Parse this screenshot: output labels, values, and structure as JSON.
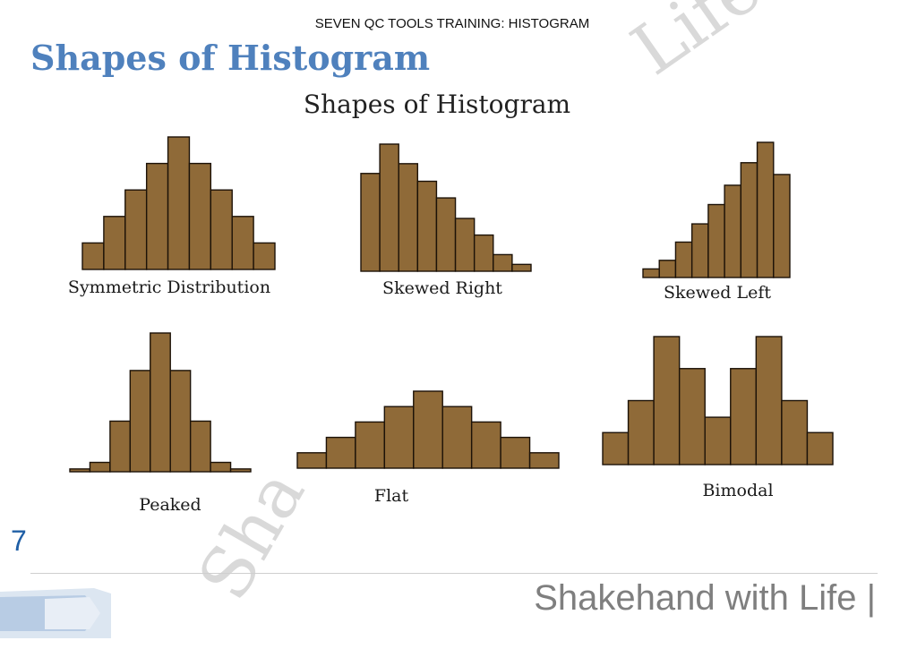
{
  "header": {
    "text": "SEVEN QC TOOLS TRAINING:  HISTOGRAM"
  },
  "slide": {
    "title": "Shapes of Histogram",
    "page_number": "7"
  },
  "figure": {
    "title": "Shapes of Histogram"
  },
  "watermark": {
    "top": "Life",
    "bottom": "Sha"
  },
  "footer": {
    "text": "Shakehand with Life |"
  },
  "colors": {
    "bar_fill": "#8f6a38",
    "bar_stroke": "#1c1208",
    "title_blue": "#4f81bd",
    "page_number_blue": "#1f5fa6",
    "footer_gray": "#7f7f7f"
  },
  "chart_data": [
    {
      "type": "bar",
      "title": "Symmetric Distribution",
      "values": [
        1,
        2,
        3,
        4,
        5,
        4,
        3,
        2,
        1
      ],
      "ylim": [
        0,
        5
      ]
    },
    {
      "type": "bar",
      "title": "Skewed Right",
      "values": [
        10,
        13,
        11,
        9.2,
        7.5,
        5.4,
        3.7,
        1.7,
        0.7
      ],
      "ylim": [
        0,
        13
      ]
    },
    {
      "type": "bar",
      "title": "Skewed Left",
      "values": [
        0.8,
        1.6,
        3.3,
        5,
        6.8,
        8.6,
        10.7,
        12.6,
        9.6
      ],
      "ylim": [
        0,
        12.6
      ]
    },
    {
      "type": "bar",
      "title": "Peaked",
      "values": [
        0.3,
        1,
        5.4,
        10.8,
        14.8,
        10.8,
        5.4,
        1,
        0.3
      ],
      "ylim": [
        0,
        14.8
      ]
    },
    {
      "type": "bar",
      "title": "Flat",
      "values": [
        1,
        2,
        3,
        4,
        5,
        4,
        3,
        2,
        1
      ],
      "ylim": [
        0,
        5
      ]
    },
    {
      "type": "bar",
      "title": "Bimodal",
      "values": [
        2.5,
        5,
        10,
        7.5,
        3.7,
        7.5,
        10,
        5,
        2.5
      ],
      "ylim": [
        0,
        10
      ]
    }
  ]
}
